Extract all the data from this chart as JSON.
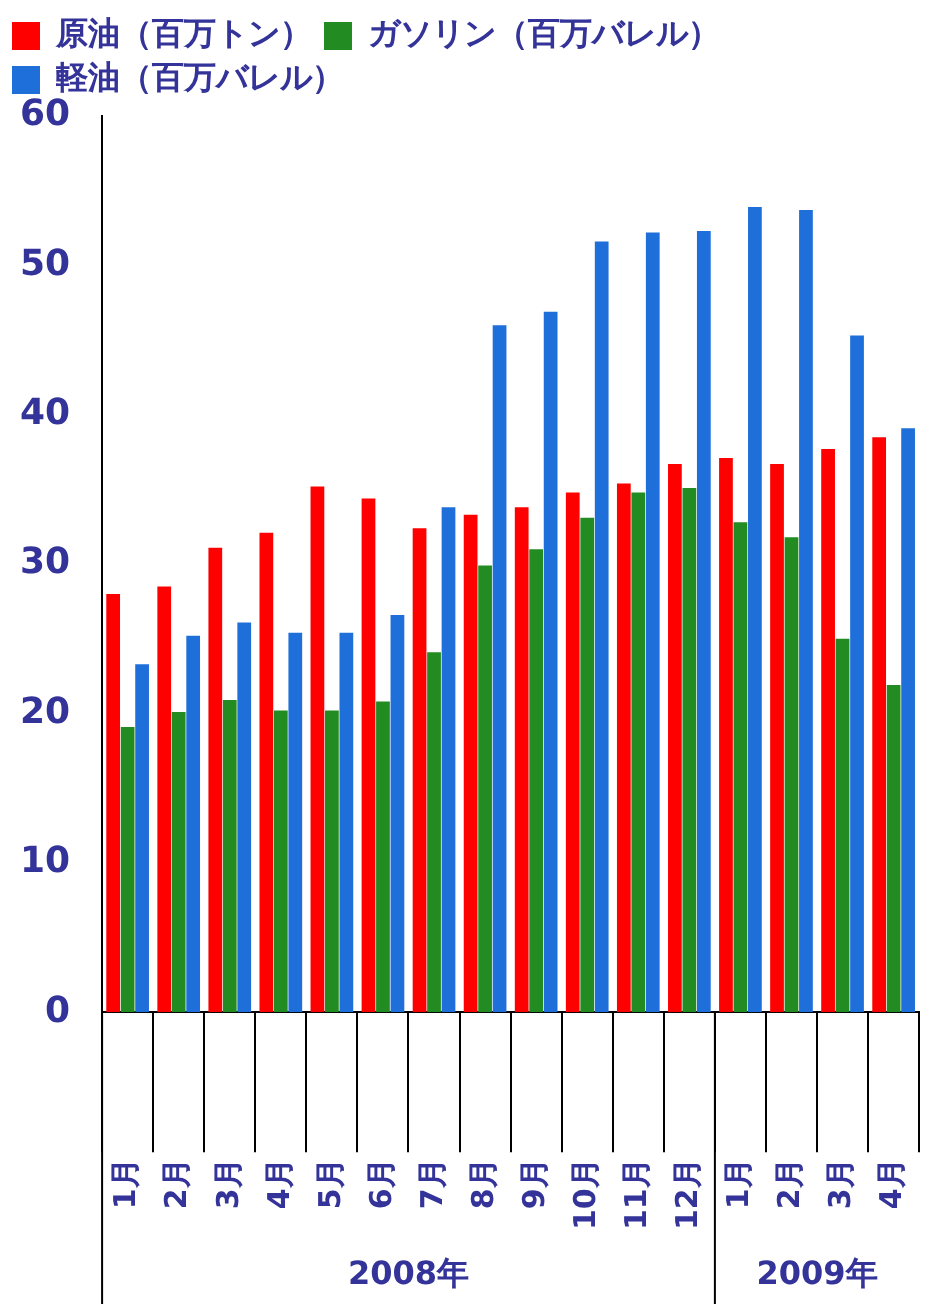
{
  "chart_data": {
    "type": "bar",
    "categories": [
      "1月",
      "2月",
      "3月",
      "4月",
      "5月",
      "6月",
      "7月",
      "8月",
      "9月",
      "10月",
      "11月",
      "12月",
      "1月",
      "2月",
      "3月",
      "4月"
    ],
    "series": [
      {
        "name": "原油（百万トン）",
        "color": "#ff0000",
        "values": [
          28.0,
          28.5,
          31.1,
          32.1,
          35.2,
          34.4,
          32.4,
          33.3,
          33.8,
          34.8,
          35.4,
          36.7,
          37.1,
          36.7,
          37.7,
          38.5
        ]
      },
      {
        "name": "ガソリン（百万バレル）",
        "color": "#228b22",
        "values": [
          19.1,
          20.1,
          20.9,
          20.2,
          20.2,
          20.8,
          24.1,
          29.9,
          31.0,
          33.1,
          34.8,
          35.1,
          32.8,
          31.8,
          25.0,
          21.9
        ]
      },
      {
        "name": "軽油（百万バレル）",
        "color": "#1e6fd9",
        "values": [
          23.3,
          25.2,
          26.1,
          25.4,
          25.4,
          26.6,
          33.8,
          46.0,
          46.9,
          51.6,
          52.2,
          52.3,
          53.9,
          53.7,
          45.3,
          39.1
        ]
      }
    ],
    "ylim": [
      0,
      60
    ],
    "yticks": [
      0,
      10,
      20,
      30,
      40,
      50,
      60
    ],
    "grid": false,
    "legend": "top left",
    "annotations": [
      "2008年",
      "2009年"
    ]
  }
}
